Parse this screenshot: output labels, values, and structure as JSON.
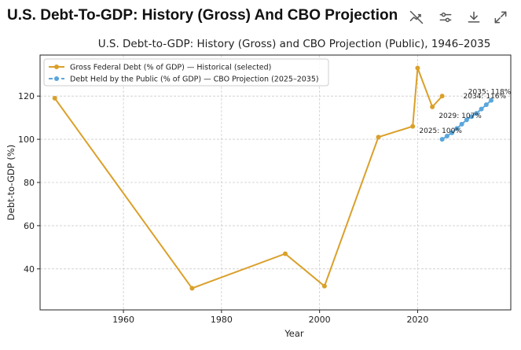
{
  "header": {
    "title": "U.S. Debt-To-GDP: History (Gross) And CBO Projection (P...",
    "icons": [
      "disable-interactive-icon",
      "settings-sliders-icon",
      "download-icon",
      "expand-icon"
    ]
  },
  "colors": {
    "historical": "#DAA02A",
    "projection": "#5AA6DC",
    "grid": "#cccccc",
    "axis": "#222222"
  },
  "chart_data": {
    "type": "line",
    "title": "U.S. Debt-to-GDP: History (Gross) and CBO Projection (Public), 1946–2035",
    "xlabel": "Year",
    "ylabel": "Debt-to-GDP (%)",
    "xlim": [
      1943,
      2039
    ],
    "ylim": [
      21,
      139
    ],
    "xticks": [
      1960,
      1980,
      2000,
      2020
    ],
    "yticks": [
      40,
      60,
      80,
      100,
      120
    ],
    "grid": true,
    "legend_position": "top-left",
    "series": [
      {
        "name": "Gross Federal Debt (% of GDP) — Historical (selected)",
        "style": "solid",
        "x": [
          1946,
          1974,
          1993,
          2001,
          2012,
          2019,
          2020,
          2023,
          2025
        ],
        "y": [
          119,
          31,
          47,
          32,
          101,
          106,
          133,
          115,
          120
        ]
      },
      {
        "name": "Debt Held by the Public (% of GDP) — CBO Projection (2025–2035)",
        "style": "dashed",
        "x": [
          2025,
          2026,
          2027,
          2028,
          2029,
          2030,
          2031,
          2032,
          2033,
          2034,
          2035
        ],
        "y": [
          100,
          101.5,
          103,
          105,
          107,
          109,
          110.5,
          112,
          114,
          116,
          118
        ]
      }
    ],
    "annotations": [
      {
        "x": 2025,
        "y": 100,
        "text": "2025: 100%"
      },
      {
        "x": 2029,
        "y": 107,
        "text": "2029: 107%"
      },
      {
        "x": 2034,
        "y": 116,
        "text": "2034: 116%"
      },
      {
        "x": 2035,
        "y": 118,
        "text": "2035: 118%"
      }
    ]
  }
}
